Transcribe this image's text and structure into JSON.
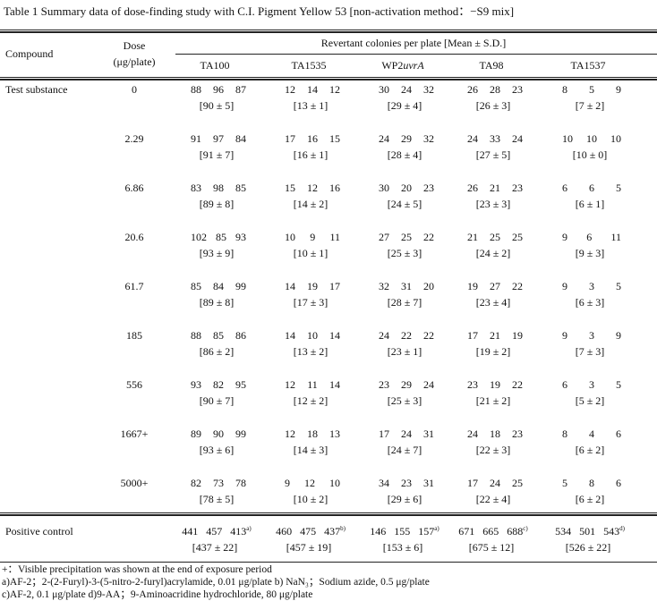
{
  "title": "Table 1   Summary data of dose-finding study with C.I. Pigment Yellow 53 [non-activation method：−S9 mix]",
  "header": {
    "compound": "Compound",
    "dose_line1": "Dose",
    "dose_line2": "(μg/plate)",
    "group": "Revertant colonies per plate [Mean ± S.D.]",
    "strains": [
      "TA100",
      "TA1535",
      "WP2uvrA",
      "TA98",
      "TA1537"
    ]
  },
  "test_substance_label": "Test substance",
  "rows": [
    {
      "dose": "0",
      "cells": [
        [
          "88",
          "96",
          "87",
          "[90 ± 5]"
        ],
        [
          "12",
          "14",
          "12",
          "[13 ± 1]"
        ],
        [
          "30",
          "24",
          "32",
          "[29 ± 4]"
        ],
        [
          "26",
          "28",
          "23",
          "[26 ± 3]"
        ],
        [
          "8",
          "5",
          "9",
          "[7 ± 2]"
        ]
      ]
    },
    {
      "dose": "2.29",
      "cells": [
        [
          "91",
          "97",
          "84",
          "[91 ± 7]"
        ],
        [
          "17",
          "16",
          "15",
          "[16 ± 1]"
        ],
        [
          "24",
          "29",
          "32",
          "[28 ± 4]"
        ],
        [
          "24",
          "33",
          "24",
          "[27 ± 5]"
        ],
        [
          "10",
          "10",
          "10",
          "[10 ± 0]"
        ]
      ]
    },
    {
      "dose": "6.86",
      "cells": [
        [
          "83",
          "98",
          "85",
          "[89 ± 8]"
        ],
        [
          "15",
          "12",
          "16",
          "[14 ± 2]"
        ],
        [
          "30",
          "20",
          "23",
          "[24 ± 5]"
        ],
        [
          "26",
          "21",
          "23",
          "[23 ± 3]"
        ],
        [
          "6",
          "6",
          "5",
          "[6 ± 1]"
        ]
      ]
    },
    {
      "dose": "20.6",
      "cells": [
        [
          "102",
          "85",
          "93",
          "[93 ± 9]"
        ],
        [
          "10",
          "9",
          "11",
          "[10 ± 1]"
        ],
        [
          "27",
          "25",
          "22",
          "[25 ± 3]"
        ],
        [
          "21",
          "25",
          "25",
          "[24 ± 2]"
        ],
        [
          "9",
          "6",
          "11",
          "[9 ± 3]"
        ]
      ]
    },
    {
      "dose": "61.7",
      "cells": [
        [
          "85",
          "84",
          "99",
          "[89 ± 8]"
        ],
        [
          "14",
          "19",
          "17",
          "[17 ± 3]"
        ],
        [
          "32",
          "31",
          "20",
          "[28 ± 7]"
        ],
        [
          "19",
          "27",
          "22",
          "[23 ± 4]"
        ],
        [
          "9",
          "3",
          "5",
          "[6 ± 3]"
        ]
      ]
    },
    {
      "dose": "185",
      "cells": [
        [
          "88",
          "85",
          "86",
          "[86 ± 2]"
        ],
        [
          "14",
          "10",
          "14",
          "[13 ± 2]"
        ],
        [
          "24",
          "22",
          "22",
          "[23 ± 1]"
        ],
        [
          "17",
          "21",
          "19",
          "[19 ± 2]"
        ],
        [
          "9",
          "3",
          "9",
          "[7 ± 3]"
        ]
      ]
    },
    {
      "dose": "556",
      "cells": [
        [
          "93",
          "82",
          "95",
          "[90 ± 7]"
        ],
        [
          "12",
          "11",
          "14",
          "[12 ± 2]"
        ],
        [
          "23",
          "29",
          "24",
          "[25 ± 3]"
        ],
        [
          "23",
          "19",
          "22",
          "[21 ± 2]"
        ],
        [
          "6",
          "3",
          "5",
          "[5 ± 2]"
        ]
      ]
    },
    {
      "dose": "1667+",
      "cells": [
        [
          "89",
          "90",
          "99",
          "[93 ± 6]"
        ],
        [
          "12",
          "18",
          "13",
          "[14 ± 3]"
        ],
        [
          "17",
          "24",
          "31",
          "[24 ± 7]"
        ],
        [
          "24",
          "18",
          "23",
          "[22 ± 3]"
        ],
        [
          "8",
          "4",
          "6",
          "[6 ± 2]"
        ]
      ]
    },
    {
      "dose": "5000+",
      "cells": [
        [
          "82",
          "73",
          "78",
          "[78 ± 5]"
        ],
        [
          "9",
          "12",
          "10",
          "[10 ± 2]"
        ],
        [
          "34",
          "23",
          "31",
          "[29 ± 6]"
        ],
        [
          "17",
          "24",
          "25",
          "[22 ± 4]"
        ],
        [
          "5",
          "8",
          "6",
          "[6 ± 2]"
        ]
      ]
    }
  ],
  "positive_control": {
    "label": "Positive control",
    "cells": [
      {
        "values": [
          "441",
          "457",
          "413"
        ],
        "note": "a)",
        "mean": "[437 ± 22]"
      },
      {
        "values": [
          "460",
          "475",
          "437"
        ],
        "note": "b)",
        "mean": "[457 ± 19]"
      },
      {
        "values": [
          "146",
          "155",
          "157"
        ],
        "note": "a)",
        "mean": "[153 ± 6]"
      },
      {
        "values": [
          "671",
          "665",
          "688"
        ],
        "note": "c)",
        "mean": "[675 ± 12]"
      },
      {
        "values": [
          "534",
          "501",
          "543"
        ],
        "note": "d)",
        "mean": "[526 ± 22]"
      }
    ]
  },
  "footnotes": [
    "+：Visible precipitation was shown at the end of exposure period",
    "a)AF-2；2-(2-Furyl)-3-(5-nitro-2-furyl)acrylamide, 0.01 μg/plate  b) NaN₃；Sodium azide, 0.5 μg/plate",
    "c)AF-2, 0.1 μg/plate  d)9-AA；9-Aminoacridine hydrochloride, 80 μg/plate"
  ]
}
